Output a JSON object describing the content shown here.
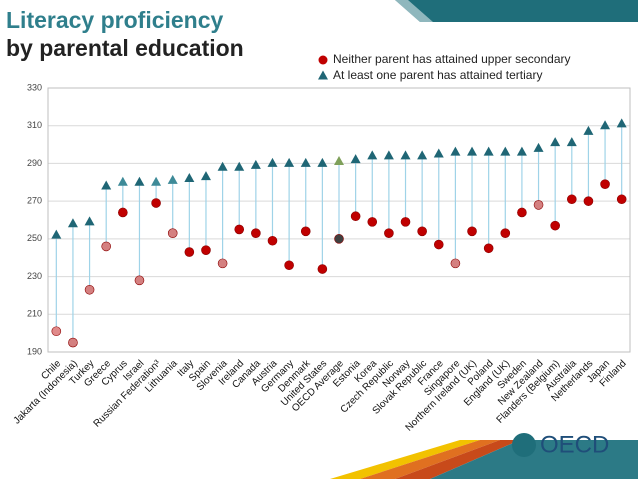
{
  "chart_data": {
    "type": "dotplot",
    "title": [
      "Literacy proficiency",
      "by parental education"
    ],
    "logo": "OECD",
    "categories": [
      "Chile",
      "Jakarta (Indonesia)",
      "Turkey",
      "Greece",
      "Cyprus",
      "Israel",
      "Russian Federation³",
      "Lithuania",
      "Italy",
      "Spain",
      "Slovenia",
      "Ireland",
      "Canada",
      "Austria",
      "Germany",
      "Denmark",
      "United States",
      "OECD Average",
      "Estonia",
      "Korea",
      "Czech Republic",
      "Norway",
      "Slovak Republic",
      "France",
      "Singapore",
      "Northern Ireland (UK)",
      "Poland",
      "England (UK)",
      "Sweden",
      "New Zealand",
      "Flanders (Belgium)",
      "Australia",
      "Netherlands",
      "Japan",
      "Finland"
    ],
    "series": [
      {
        "name": "Neither parent has attained upper secondary",
        "marker": "circle",
        "color": "#c00000",
        "point_colors": {
          "0": "#e08a8a",
          "1": "#d48080",
          "2": "#d48080",
          "3": "#d48080",
          "5": "#d48080",
          "7": "#d48080",
          "10": "#d48080",
          "17": "#404040",
          "24": "#d48080",
          "29": "#d48080"
        },
        "values": [
          201,
          195,
          223,
          246,
          264,
          228,
          269,
          253,
          243,
          244,
          237,
          255,
          253,
          249,
          236,
          254,
          234,
          250,
          262,
          259,
          253,
          259,
          254,
          247,
          237,
          254,
          245,
          253,
          264,
          268,
          257,
          271,
          270,
          279,
          271
        ]
      },
      {
        "name": "At least one parent has attained tertiary",
        "marker": "triangle",
        "color": "#1f6675",
        "point_colors": {
          "4": "#3d8a98",
          "6": "#3d8a98",
          "7": "#3d8a98",
          "17": "#7fa05a"
        },
        "values": [
          252,
          258,
          259,
          278,
          280,
          280,
          280,
          281,
          282,
          283,
          288,
          288,
          289,
          290,
          290,
          290,
          290,
          291,
          292,
          294,
          294,
          294,
          294,
          295,
          296,
          296,
          296,
          296,
          296,
          298,
          301,
          301,
          307,
          310,
          311
        ]
      }
    ],
    "connector_color": "#9fd3e8",
    "ylim": [
      190,
      330
    ],
    "yticks": [
      190,
      210,
      230,
      250,
      270,
      290,
      310,
      330
    ],
    "grid": true
  }
}
